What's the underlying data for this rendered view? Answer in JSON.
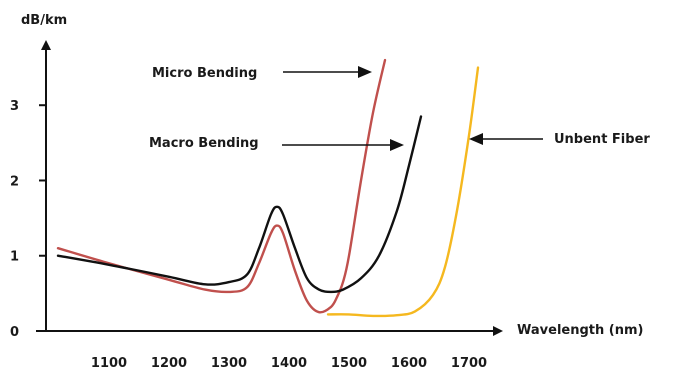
{
  "chart_data": {
    "type": "line",
    "xlabel": "Wavelength (nm)",
    "ylabel": "dB/km",
    "xlim": [
      995,
      1735
    ],
    "ylim": [
      0,
      3.8
    ],
    "xticks": [
      1100,
      1200,
      1300,
      1400,
      1500,
      1600,
      1700
    ],
    "yticks": [
      0,
      1,
      2,
      3
    ],
    "grid": false,
    "colors": {
      "micro": "#c0504d",
      "macro": "#111111",
      "unbent": "#f5b81f",
      "axis": "#111111"
    },
    "series": [
      {
        "name": "Micro Bending",
        "color": "#c0504d",
        "x": [
          1015,
          1100,
          1200,
          1260,
          1300,
          1330,
          1350,
          1370,
          1380,
          1390,
          1410,
          1430,
          1450,
          1470,
          1480,
          1490,
          1500,
          1520,
          1540,
          1560
        ],
        "y": [
          1.1,
          0.9,
          0.68,
          0.55,
          0.52,
          0.58,
          0.9,
          1.3,
          1.4,
          1.3,
          0.8,
          0.4,
          0.25,
          0.32,
          0.45,
          0.65,
          1.0,
          2.0,
          2.9,
          3.6
        ]
      },
      {
        "name": "Macro Bending",
        "color": "#111111",
        "x": [
          1015,
          1100,
          1200,
          1260,
          1300,
          1330,
          1350,
          1370,
          1380,
          1390,
          1410,
          1430,
          1450,
          1470,
          1490,
          1520,
          1550,
          1580,
          1600,
          1620
        ],
        "y": [
          1.0,
          0.88,
          0.72,
          0.62,
          0.65,
          0.75,
          1.1,
          1.55,
          1.65,
          1.55,
          1.1,
          0.7,
          0.55,
          0.52,
          0.55,
          0.7,
          1.0,
          1.6,
          2.2,
          2.85
        ]
      },
      {
        "name": "Unbent Fiber",
        "color": "#f5b81f",
        "x": [
          1465,
          1500,
          1540,
          1580,
          1610,
          1640,
          1660,
          1680,
          1700,
          1715
        ],
        "y": [
          0.22,
          0.22,
          0.2,
          0.21,
          0.26,
          0.48,
          0.85,
          1.6,
          2.6,
          3.5
        ]
      }
    ],
    "annotations": [
      {
        "text": "Micro Bending",
        "target_series": "Micro Bending",
        "position": "left-of-curve"
      },
      {
        "text": "Macro Bending",
        "target_series": "Macro Bending",
        "position": "left-of-curve"
      },
      {
        "text": "Unbent Fiber",
        "target_series": "Unbent Fiber",
        "position": "right-of-curve"
      }
    ]
  }
}
